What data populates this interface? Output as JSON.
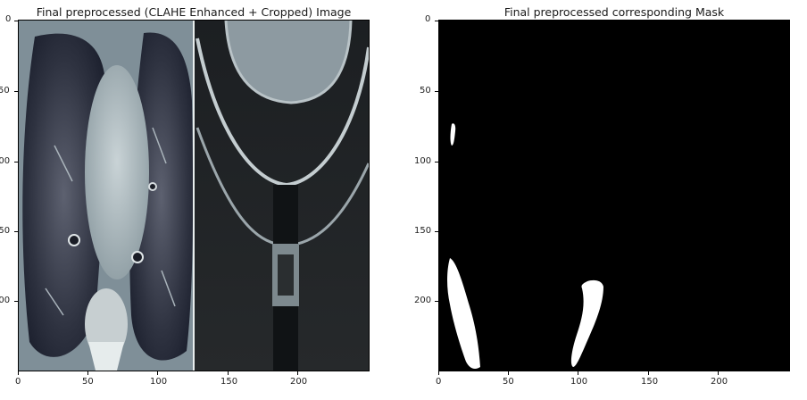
{
  "left": {
    "title": "Final preprocessed (CLAHE Enhanced + Cropped) Image",
    "y_ticks": [
      "0",
      "50",
      "100",
      "150",
      "200"
    ],
    "x_ticks": [
      "0",
      "50",
      "100",
      "150",
      "200"
    ]
  },
  "right": {
    "title": "Final preprocessed corresponding Mask",
    "y_ticks": [
      "0",
      "50",
      "100",
      "150",
      "200"
    ],
    "x_ticks": [
      "0",
      "50",
      "100",
      "150",
      "200"
    ]
  }
}
